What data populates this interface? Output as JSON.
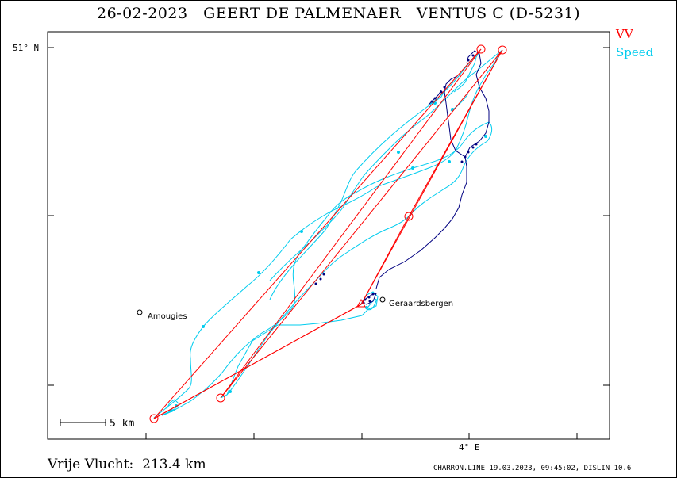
{
  "title": {
    "date": "26-02-2023",
    "pilot": "GEERT DE PALMENAER",
    "glider": "VENTUS C (D-5231)"
  },
  "legend": {
    "vv": "VV",
    "speed": "Speed",
    "vv_color": "#ff0000",
    "speed_color": "#00ccee",
    "vario_color": "#000080"
  },
  "axes": {
    "lat_label": "51° N",
    "lon_label": "4° E"
  },
  "places": [
    {
      "name": "Amougies"
    },
    {
      "name": "Geraardsbergen"
    }
  ],
  "scale": {
    "label": "5 km"
  },
  "footer": {
    "distance": "Vrije Vlucht:  213.4 km",
    "info": "CHARRON.LINE 19.03.2023, 09:45:02, DISLIN 10.6"
  }
}
